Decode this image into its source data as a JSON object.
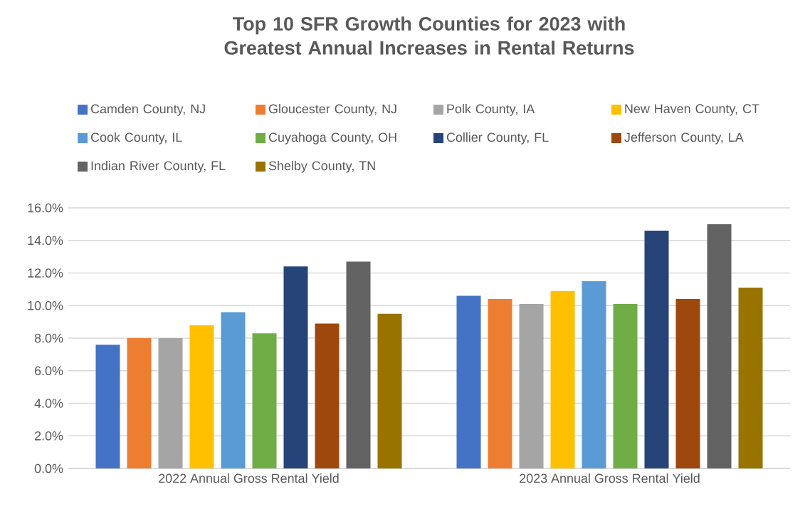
{
  "chart_data": {
    "type": "bar",
    "title": "Top 10 SFR Growth Counties for 2023 with Greatest Annual Increases in Rental Returns",
    "categories": [
      "2022 Annual Gross Rental Yield",
      "2023 Annual Gross Rental Yield"
    ],
    "series": [
      {
        "name": "Camden County, NJ",
        "color": "#4472c4",
        "values": [
          7.6,
          10.6
        ]
      },
      {
        "name": "Gloucester County, NJ",
        "color": "#ed7d31",
        "values": [
          8.0,
          10.4
        ]
      },
      {
        "name": "Polk County, IA",
        "color": "#a5a5a5",
        "values": [
          8.0,
          10.1
        ]
      },
      {
        "name": "New Haven County, CT",
        "color": "#ffc000",
        "values": [
          8.8,
          10.9
        ]
      },
      {
        "name": "Cook County, IL",
        "color": "#5b9bd5",
        "values": [
          9.6,
          11.5
        ]
      },
      {
        "name": "Cuyahoga County, OH",
        "color": "#70ad47",
        "values": [
          8.3,
          10.1
        ]
      },
      {
        "name": "Collier County, FL",
        "color": "#264478",
        "values": [
          12.4,
          14.6
        ]
      },
      {
        "name": "Jefferson County, LA",
        "color": "#9e480e",
        "values": [
          8.9,
          10.4
        ]
      },
      {
        "name": "Indian River County, FL",
        "color": "#636363",
        "values": [
          12.7,
          15.0
        ]
      },
      {
        "name": "Shelby County, TN",
        "color": "#997300",
        "values": [
          9.5,
          11.1
        ]
      }
    ],
    "ylim": [
      0,
      16
    ],
    "yticks": [
      {
        "value": 0,
        "label": "0.0%"
      },
      {
        "value": 2,
        "label": "2.0%"
      },
      {
        "value": 4,
        "label": "4.0%"
      },
      {
        "value": 6,
        "label": "6.0%"
      },
      {
        "value": 8,
        "label": "8.0%"
      },
      {
        "value": 10,
        "label": "10.0%"
      },
      {
        "value": 12,
        "label": "12.0%"
      },
      {
        "value": 14,
        "label": "14.0%"
      },
      {
        "value": 16,
        "label": "16.0%"
      }
    ],
    "grid": "y",
    "legend": "top"
  }
}
